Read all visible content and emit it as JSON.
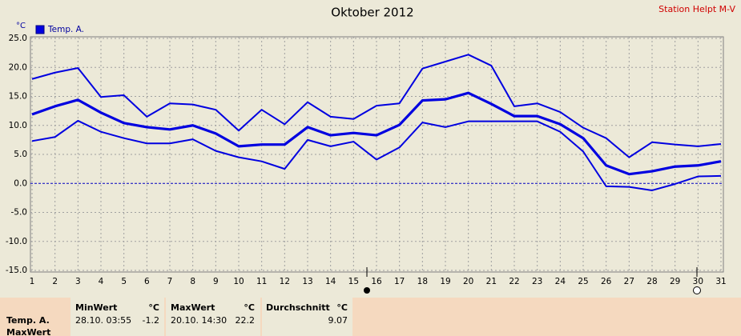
{
  "chart_data": {
    "type": "line",
    "title": "Oktober 2012",
    "station": "Station Helpt M-V",
    "y_unit": "°C",
    "x": [
      1,
      2,
      3,
      4,
      5,
      6,
      7,
      8,
      9,
      10,
      11,
      12,
      13,
      14,
      15,
      16,
      17,
      18,
      19,
      20,
      21,
      22,
      23,
      24,
      25,
      26,
      27,
      28,
      29,
      30,
      31
    ],
    "xlim": [
      1,
      31
    ],
    "xticks": [
      1,
      2,
      3,
      4,
      5,
      6,
      7,
      8,
      9,
      10,
      11,
      12,
      13,
      14,
      15,
      16,
      17,
      18,
      19,
      20,
      21,
      22,
      23,
      24,
      25,
      26,
      27,
      28,
      29,
      30,
      31
    ],
    "ylim": [
      -15,
      25
    ],
    "yticks": [
      {
        "value": -15,
        "label": "-15.0"
      },
      {
        "value": -10,
        "label": "-10.0"
      },
      {
        "value": -5,
        "label": "-5.0"
      },
      {
        "value": 0,
        "label": "0.0"
      },
      {
        "value": 5,
        "label": "5.0"
      },
      {
        "value": 10,
        "label": "10.0"
      },
      {
        "value": 15,
        "label": "15.0"
      },
      {
        "value": 20,
        "label": "20.0"
      },
      {
        "value": 25,
        "label": "25.0"
      }
    ],
    "grid": true,
    "series": [
      {
        "name": "Temp. A.",
        "color": "#0000e0",
        "line_width": 3.2,
        "values": [
          11.9,
          13.3,
          14.4,
          12.2,
          10.4,
          9.7,
          9.3,
          10.0,
          8.6,
          6.4,
          6.7,
          6.7,
          9.7,
          8.3,
          8.7,
          8.3,
          10.1,
          14.3,
          14.5,
          15.6,
          13.7,
          11.6,
          11.6,
          10.2,
          7.8,
          3.1,
          1.6,
          2.1,
          2.9,
          3.1,
          3.8
        ]
      },
      {
        "color": "#0000e0",
        "line_width": 2,
        "values": [
          18.0,
          19.1,
          19.9,
          14.9,
          15.2,
          11.5,
          13.8,
          13.6,
          12.7,
          9.1,
          12.7,
          10.2,
          14.0,
          11.5,
          11.1,
          13.4,
          13.8,
          19.8,
          21.0,
          22.2,
          20.3,
          13.3,
          13.8,
          12.3,
          9.6,
          7.8,
          4.5,
          7.1,
          6.7,
          6.4,
          6.8
        ]
      },
      {
        "color": "#0000e0",
        "line_width": 2,
        "values": [
          7.3,
          8.0,
          10.8,
          8.9,
          7.8,
          6.9,
          6.9,
          7.6,
          5.6,
          4.5,
          3.8,
          2.5,
          7.5,
          6.4,
          7.2,
          4.1,
          6.2,
          10.5,
          9.7,
          10.7,
          10.7,
          10.7,
          10.7,
          8.9,
          5.5,
          -0.5,
          -0.6,
          -1.2,
          -0.1,
          1.2,
          1.3
        ]
      }
    ]
  },
  "stats": {
    "row_label": "Temp. A.",
    "row_label_2": "MaxWert",
    "columns": [
      {
        "header": "MinWert",
        "unit": "°C",
        "when": "28.10.  03:55",
        "value": -1.2
      },
      {
        "header": "MaxWert",
        "unit": "°C",
        "when": "20.10.  14:30",
        "value": 22.2
      },
      {
        "header": "Durchschnitt",
        "unit": "°C",
        "value": 9.07
      }
    ]
  }
}
